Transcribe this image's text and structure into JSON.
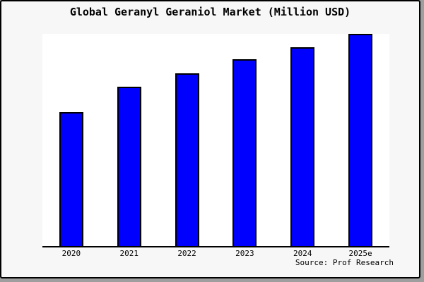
{
  "chart_data": {
    "type": "bar",
    "title": "Global Geranyl Geraniol Market (Million USD)",
    "categories": [
      "2020",
      "2021",
      "2022",
      "2023",
      "2024",
      "2025e"
    ],
    "values": [
      63.0,
      75.2,
      81.5,
      88.1,
      93.7,
      100.0
    ],
    "values_unit": "percent of tallest bar (no y-axis values are shown in the chart)",
    "xlabel": "",
    "ylabel": "",
    "value_axis_visible": false,
    "gridlines": false,
    "legend": false,
    "source_note": "Source: Prof Research",
    "colors": {
      "bar_fill": "#0000ff",
      "bar_edge": "#000000",
      "axis": "#000000",
      "figure_background": "#f7f7f7",
      "plot_background": "#ffffff",
      "frame": "#000000",
      "shadow": "#9e9e9e"
    }
  }
}
